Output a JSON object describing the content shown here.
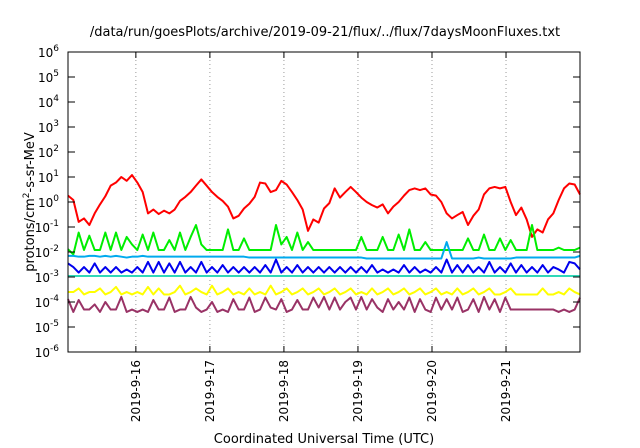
{
  "chart_data": {
    "type": "line",
    "title": "/data/run/goesPlots/archive/2019-09-21/flux/../flux/7daysMoonFluxes.txt",
    "xlabel": "Coordinated Universal Time (UTC)",
    "ylabel": {
      "prefix": "protons/cm",
      "sup": "2",
      "suffix": "-s-sr-MeV"
    },
    "yscale": "log",
    "ylim": [
      1e-06,
      1000000.0
    ],
    "xlim": [
      "2019-09-15 02:00",
      "2019-09-21 23:59"
    ],
    "y_ticks": [
      {
        "exp": -6,
        "label_base": "10",
        "label_exp": "-6"
      },
      {
        "exp": -5,
        "label_base": "10",
        "label_exp": "-5"
      },
      {
        "exp": -4,
        "label_base": "10",
        "label_exp": "-4"
      },
      {
        "exp": -3,
        "label_base": "10",
        "label_exp": "-3"
      },
      {
        "exp": -2,
        "label_base": "10",
        "label_exp": "-2"
      },
      {
        "exp": -1,
        "label_base": "10",
        "label_exp": "-1"
      },
      {
        "exp": 0,
        "label_base": "10",
        "label_exp": "0"
      },
      {
        "exp": 1,
        "label_base": "10",
        "label_exp": "1"
      },
      {
        "exp": 2,
        "label_base": "10",
        "label_exp": "2"
      },
      {
        "exp": 3,
        "label_base": "10",
        "label_exp": "3"
      },
      {
        "exp": 4,
        "label_base": "10",
        "label_exp": "4"
      },
      {
        "exp": 5,
        "label_base": "10",
        "label_exp": "5"
      },
      {
        "exp": 6,
        "label_base": "10",
        "label_exp": "6"
      }
    ],
    "x_ticks": [
      {
        "x": "2019-09-16 00:00",
        "label": "2019-9-16"
      },
      {
        "x": "2019-09-17 00:00",
        "label": "2019-9-17"
      },
      {
        "x": "2019-09-18 00:00",
        "label": "2019-9-18"
      },
      {
        "x": "2019-09-19 00:00",
        "label": "2019-9-19"
      },
      {
        "x": "2019-09-20 00:00",
        "label": "2019-9-20"
      },
      {
        "x": "2019-09-21 00:00",
        "label": "2019-9-21"
      }
    ],
    "grid": {
      "x": true,
      "y": false,
      "style": "dotted"
    },
    "legend": "none",
    "series": [
      {
        "color": "#ff0000",
        "values": [
          1.8,
          1.2,
          0.16,
          0.22,
          0.12,
          0.35,
          0.8,
          1.7,
          4.5,
          6,
          10,
          7,
          12,
          6,
          2.5,
          0.35,
          0.5,
          0.33,
          0.45,
          0.35,
          0.5,
          1.1,
          1.6,
          2.5,
          4.5,
          8,
          4.5,
          2.5,
          1.6,
          1.1,
          0.65,
          0.22,
          0.28,
          0.55,
          0.85,
          1.6,
          6,
          5.5,
          2.5,
          3,
          7,
          5,
          2.5,
          1.2,
          0.5,
          0.07,
          0.2,
          0.15,
          0.55,
          0.9,
          3.5,
          1.5,
          2.5,
          4,
          2.5,
          1.5,
          1,
          0.75,
          0.6,
          0.8,
          0.35,
          0.65,
          1,
          1.8,
          3,
          3.5,
          3,
          3.5,
          2,
          1.8,
          1,
          0.35,
          0.22,
          0.3,
          0.4,
          0.12,
          0.28,
          0.5,
          2,
          3.5,
          4,
          3.5,
          4,
          1,
          0.3,
          0.6,
          0.2,
          0.04,
          0.08,
          0.06,
          0.2,
          0.35,
          1.2,
          3.5,
          5.5,
          5,
          2
        ]
      },
      {
        "color": "#00ee00",
        "values": [
          0.013,
          0.008,
          0.06,
          0.012,
          0.045,
          0.012,
          0.012,
          0.06,
          0.012,
          0.06,
          0.012,
          0.04,
          0.02,
          0.012,
          0.05,
          0.012,
          0.06,
          0.012,
          0.012,
          0.03,
          0.012,
          0.06,
          0.012,
          0.04,
          0.12,
          0.02,
          0.012,
          0.012,
          0.012,
          0.012,
          0.08,
          0.012,
          0.012,
          0.035,
          0.012,
          0.012,
          0.012,
          0.012,
          0.012,
          0.12,
          0.02,
          0.04,
          0.012,
          0.06,
          0.012,
          0.025,
          0.012,
          0.012,
          0.012,
          0.012,
          0.012,
          0.012,
          0.012,
          0.012,
          0.012,
          0.04,
          0.012,
          0.012,
          0.012,
          0.04,
          0.012,
          0.012,
          0.05,
          0.012,
          0.08,
          0.012,
          0.012,
          0.025,
          0.012,
          0.012,
          0.012,
          0.012,
          0.012,
          0.012,
          0.012,
          0.035,
          0.012,
          0.012,
          0.05,
          0.012,
          0.012,
          0.035,
          0.012,
          0.03,
          0.012,
          0.012,
          0.012,
          0.12,
          0.012,
          0.012,
          0.012,
          0.012,
          0.015,
          0.012,
          0.012,
          0.012,
          0.015
        ]
      },
      {
        "color": "#0000ee",
        "values": [
          0.0035,
          0.0025,
          0.0015,
          0.0025,
          0.0015,
          0.0035,
          0.0015,
          0.0025,
          0.0015,
          0.0025,
          0.0015,
          0.002,
          0.0015,
          0.0025,
          0.0015,
          0.004,
          0.0015,
          0.004,
          0.0015,
          0.0035,
          0.0015,
          0.004,
          0.0015,
          0.0025,
          0.0015,
          0.004,
          0.0015,
          0.0025,
          0.0015,
          0.003,
          0.0015,
          0.0025,
          0.0015,
          0.0025,
          0.0015,
          0.0025,
          0.0015,
          0.003,
          0.0015,
          0.005,
          0.0015,
          0.0025,
          0.0015,
          0.003,
          0.0015,
          0.0025,
          0.0015,
          0.0025,
          0.0015,
          0.0025,
          0.0015,
          0.0025,
          0.0015,
          0.0025,
          0.0015,
          0.0025,
          0.0015,
          0.003,
          0.0015,
          0.002,
          0.0015,
          0.002,
          0.0015,
          0.003,
          0.0015,
          0.0025,
          0.0015,
          0.002,
          0.0015,
          0.0025,
          0.0015,
          0.005,
          0.0015,
          0.003,
          0.0015,
          0.003,
          0.0015,
          0.0025,
          0.0015,
          0.004,
          0.0015,
          0.0025,
          0.0015,
          0.0035,
          0.0015,
          0.003,
          0.0015,
          0.0025,
          0.0015,
          0.003,
          0.0015,
          0.0025,
          0.002,
          0.0015,
          0.004,
          0.0035,
          0.002
        ]
      },
      {
        "color": "#00aaee",
        "values": [
          0.007,
          0.007,
          0.0065,
          0.0065,
          0.007,
          0.007,
          0.0065,
          0.007,
          0.0065,
          0.007,
          0.0065,
          0.006,
          0.0065,
          0.0065,
          0.007,
          0.0065,
          0.0065,
          0.0065,
          0.0065,
          0.0065,
          0.0065,
          0.0065,
          0.0065,
          0.0065,
          0.0065,
          0.0065,
          0.0065,
          0.0065,
          0.0065,
          0.0065,
          0.0065,
          0.0065,
          0.0065,
          0.0065,
          0.006,
          0.006,
          0.006,
          0.006,
          0.006,
          0.006,
          0.006,
          0.006,
          0.006,
          0.006,
          0.006,
          0.006,
          0.006,
          0.006,
          0.006,
          0.006,
          0.006,
          0.006,
          0.006,
          0.006,
          0.006,
          0.006,
          0.0055,
          0.0055,
          0.0055,
          0.0055,
          0.0055,
          0.0055,
          0.0055,
          0.0055,
          0.0055,
          0.0055,
          0.0055,
          0.0055,
          0.0055,
          0.0055,
          0.0055,
          0.025,
          0.0055,
          0.0055,
          0.0055,
          0.0055,
          0.0055,
          0.006,
          0.0055,
          0.0055,
          0.0055,
          0.0055,
          0.0055,
          0.0055,
          0.006,
          0.006,
          0.006,
          0.006,
          0.006,
          0.006,
          0.006,
          0.006,
          0.006,
          0.006,
          0.006,
          0.006,
          0.007
        ]
      },
      {
        "color": "#30d8b8",
        "values": [
          0.0011,
          0.0011,
          0.0011,
          0.0011,
          0.0011,
          0.0011,
          0.0011,
          0.0011,
          0.0011,
          0.0011,
          0.0011,
          0.0011,
          0.0011,
          0.0011,
          0.0011,
          0.0011,
          0.0011,
          0.0011,
          0.0011,
          0.0011,
          0.0011,
          0.0011,
          0.0011,
          0.0011,
          0.0011,
          0.0011,
          0.0011,
          0.0011,
          0.0011,
          0.0011,
          0.0011,
          0.0011,
          0.0011,
          0.0011,
          0.0011,
          0.0011,
          0.0011,
          0.0011,
          0.0011,
          0.0011,
          0.0011,
          0.0011,
          0.0011,
          0.0011,
          0.0011,
          0.0011,
          0.0011,
          0.0011,
          0.0011,
          0.0011,
          0.0011,
          0.0011,
          0.0011,
          0.0011,
          0.0011,
          0.0011,
          0.0011,
          0.0011,
          0.0011,
          0.0011,
          0.0011,
          0.0011,
          0.0011,
          0.0011,
          0.0011,
          0.0011,
          0.0011,
          0.0011,
          0.0011,
          0.0011,
          0.0011,
          0.0011,
          0.0011,
          0.0011,
          0.0011,
          0.0011,
          0.0011,
          0.0011,
          0.0011,
          0.0011,
          0.0011,
          0.0011,
          0.0011,
          0.0011,
          0.0011,
          0.0011,
          0.0011,
          0.0011,
          0.0011,
          0.0011,
          0.0011,
          0.0011,
          0.0011,
          0.0011,
          0.0011,
          0.0011,
          0.0011
        ]
      },
      {
        "color": "#ffff00",
        "values": [
          0.00025,
          0.00025,
          0.00035,
          0.0002,
          0.00025,
          0.00025,
          0.00035,
          0.0002,
          0.00025,
          0.0004,
          0.0002,
          0.00025,
          0.0002,
          0.00025,
          0.0002,
          0.0004,
          0.0002,
          0.00035,
          0.0002,
          0.0002,
          0.00025,
          0.00045,
          0.0002,
          0.00025,
          0.00035,
          0.00025,
          0.0002,
          0.00045,
          0.0002,
          0.00025,
          0.00035,
          0.0002,
          0.00025,
          0.0002,
          0.00035,
          0.0002,
          0.00025,
          0.0002,
          0.00045,
          0.0002,
          0.00025,
          0.00035,
          0.0002,
          0.00025,
          0.00035,
          0.0002,
          0.00025,
          0.00035,
          0.0002,
          0.00025,
          0.00035,
          0.0002,
          0.00025,
          0.00035,
          0.0002,
          0.00025,
          0.0002,
          0.00035,
          0.0002,
          0.00025,
          0.00035,
          0.0002,
          0.00025,
          0.00035,
          0.0002,
          0.00025,
          0.00035,
          0.0002,
          0.00025,
          0.00035,
          0.0002,
          0.00025,
          0.0002,
          0.00035,
          0.0002,
          0.00025,
          0.00035,
          0.0002,
          0.00025,
          0.00035,
          0.0002,
          0.0002,
          0.00025,
          0.00035,
          0.0002,
          0.0002,
          0.0002,
          0.0002,
          0.0002,
          0.00035,
          0.0002,
          0.0002,
          0.00025,
          0.0002,
          0.00035,
          0.00025,
          0.0002
        ]
      },
      {
        "color": "#993366",
        "values": [
          0.00013,
          4e-05,
          0.00012,
          5e-05,
          5e-05,
          8e-05,
          4e-05,
          0.0001,
          5e-05,
          5e-05,
          0.00016,
          4e-05,
          5e-05,
          4e-05,
          5e-05,
          4e-05,
          0.00012,
          5e-05,
          5e-05,
          0.00015,
          4e-05,
          5e-05,
          5e-05,
          0.00016,
          6e-05,
          4e-05,
          5e-05,
          0.0001,
          4e-05,
          5e-05,
          4e-05,
          0.00013,
          5e-05,
          5e-05,
          0.00015,
          4e-05,
          5e-05,
          0.00015,
          6e-05,
          5e-05,
          0.00013,
          4e-05,
          5e-05,
          0.00012,
          5e-05,
          5e-05,
          0.00015,
          6e-05,
          0.00016,
          5e-05,
          0.00015,
          5e-05,
          0.0001,
          0.00015,
          5e-05,
          0.00016,
          5e-05,
          0.00013,
          6e-05,
          4e-05,
          0.00013,
          5e-05,
          0.0001,
          5e-05,
          0.00015,
          4e-05,
          0.00013,
          5e-05,
          4e-05,
          0.00015,
          5e-05,
          0.00013,
          5e-05,
          0.00015,
          4e-05,
          5e-05,
          0.00013,
          4e-05,
          0.00016,
          5e-05,
          0.00013,
          4e-05,
          0.00015,
          5e-05,
          5e-05,
          5e-05,
          5e-05,
          5e-05,
          5e-05,
          5e-05,
          5e-05,
          5e-05,
          4e-05,
          5e-05,
          4e-05,
          5e-05,
          0.00015
        ]
      }
    ]
  }
}
